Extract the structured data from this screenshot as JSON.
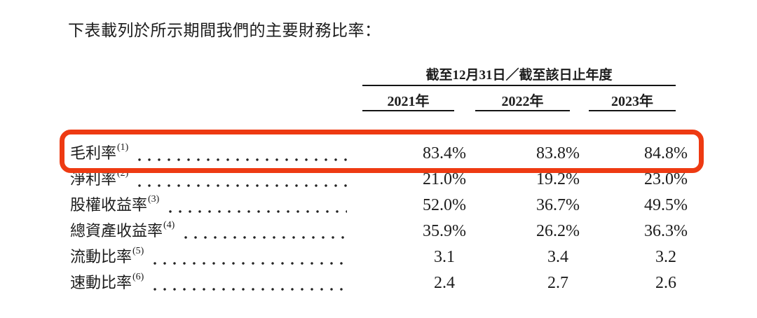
{
  "title": "下表載列於所示期間我們的主要財務比率：",
  "table": {
    "spanner": "截至12月31日／截至該日止年度",
    "columns": [
      "2021年",
      "2022年",
      "2023年"
    ],
    "rows": [
      {
        "label": "毛利率",
        "sup": "(1)",
        "values": [
          "83.4%",
          "83.8%",
          "84.8%"
        ],
        "highlighted": true
      },
      {
        "label": "淨利率",
        "sup": "(2)",
        "values": [
          "21.0%",
          "19.2%",
          "23.0%"
        ],
        "highlighted": false
      },
      {
        "label": "股權收益率",
        "sup": "(3)",
        "values": [
          "52.0%",
          "36.7%",
          "49.5%"
        ],
        "highlighted": false
      },
      {
        "label": "總資產收益率",
        "sup": "(4)",
        "values": [
          "35.9%",
          "26.2%",
          "36.3%"
        ],
        "highlighted": false
      },
      {
        "label": "流動比率",
        "sup": "(5)",
        "values": [
          "3.1",
          "3.4",
          "3.2"
        ],
        "highlighted": false
      },
      {
        "label": "速動比率",
        "sup": "(6)",
        "values": [
          "2.4",
          "2.7",
          "2.6"
        ],
        "highlighted": false
      }
    ],
    "highlight_color": "#ee3a12"
  }
}
